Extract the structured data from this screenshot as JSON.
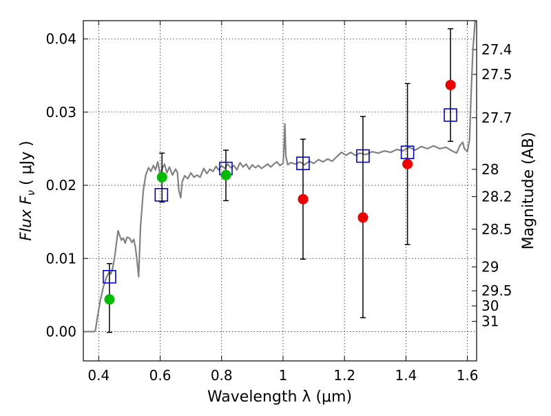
{
  "chart_data": {
    "type": "scatter",
    "xlabel": "Wavelength  λ (μm)",
    "ylabel": "Flux  F",
    "ylabel_sub": "ν",
    "ylabel_unit": " ( μJy )",
    "y2label": "Magnitude (AB)",
    "xlim": [
      0.35,
      1.63
    ],
    "ylim": [
      -0.004,
      0.0425
    ],
    "grid": true,
    "x_ticks": [
      {
        "v": 0.4,
        "label": "0.4"
      },
      {
        "v": 0.6,
        "label": "0.6"
      },
      {
        "v": 0.8,
        "label": "0.8"
      },
      {
        "v": 1.0,
        "label": "1"
      },
      {
        "v": 1.2,
        "label": "1.2"
      },
      {
        "v": 1.4,
        "label": "1.4"
      },
      {
        "v": 1.6,
        "label": "1.6"
      }
    ],
    "y_ticks": [
      {
        "v": 0.0,
        "label": "0.00"
      },
      {
        "v": 0.01,
        "label": "0.01"
      },
      {
        "v": 0.02,
        "label": "0.02"
      },
      {
        "v": 0.03,
        "label": "0.03"
      },
      {
        "v": 0.04,
        "label": "0.04"
      }
    ],
    "mag_ticks": [
      {
        "label": "27.4",
        "flux": 0.03855
      },
      {
        "label": "27.5",
        "flux": 0.03516
      },
      {
        "label": "27.7",
        "flux": 0.02924
      },
      {
        "label": "28",
        "flux": 0.02218
      },
      {
        "label": "28.2",
        "flux": 0.01845
      },
      {
        "label": "28.5",
        "flux": 0.014
      },
      {
        "label": "29",
        "flux": 0.00884
      },
      {
        "label": "29.5",
        "flux": 0.00558
      },
      {
        "label": "30",
        "flux": 0.00352
      },
      {
        "label": "31",
        "flux": 0.0014
      }
    ],
    "model_spectrum": {
      "color": "#808080",
      "points": [
        [
          0.35,
          0.0
        ],
        [
          0.386,
          0.0
        ],
        [
          0.39,
          0.0003
        ],
        [
          0.395,
          0.0018
        ],
        [
          0.405,
          0.0042
        ],
        [
          0.415,
          0.0061
        ],
        [
          0.425,
          0.0074
        ],
        [
          0.435,
          0.0082
        ],
        [
          0.44,
          0.0079
        ],
        [
          0.445,
          0.0086
        ],
        [
          0.452,
          0.0102
        ],
        [
          0.458,
          0.0122
        ],
        [
          0.463,
          0.0138
        ],
        [
          0.468,
          0.0132
        ],
        [
          0.474,
          0.0125
        ],
        [
          0.48,
          0.0128
        ],
        [
          0.486,
          0.0121
        ],
        [
          0.492,
          0.0129
        ],
        [
          0.5,
          0.0128
        ],
        [
          0.508,
          0.0122
        ],
        [
          0.514,
          0.0126
        ],
        [
          0.52,
          0.0114
        ],
        [
          0.525,
          0.0096
        ],
        [
          0.53,
          0.0075
        ],
        [
          0.536,
          0.0143
        ],
        [
          0.545,
          0.0192
        ],
        [
          0.553,
          0.0214
        ],
        [
          0.562,
          0.0224
        ],
        [
          0.57,
          0.0219
        ],
        [
          0.578,
          0.0227
        ],
        [
          0.585,
          0.0221
        ],
        [
          0.592,
          0.0232
        ],
        [
          0.6,
          0.0214
        ],
        [
          0.607,
          0.0223
        ],
        [
          0.614,
          0.0229
        ],
        [
          0.622,
          0.0217
        ],
        [
          0.63,
          0.0225
        ],
        [
          0.64,
          0.0214
        ],
        [
          0.65,
          0.0222
        ],
        [
          0.656,
          0.0218
        ],
        [
          0.661,
          0.0193
        ],
        [
          0.667,
          0.0183
        ],
        [
          0.672,
          0.0205
        ],
        [
          0.68,
          0.0213
        ],
        [
          0.69,
          0.0209
        ],
        [
          0.7,
          0.0217
        ],
        [
          0.71,
          0.0211
        ],
        [
          0.72,
          0.0214
        ],
        [
          0.73,
          0.0211
        ],
        [
          0.742,
          0.0223
        ],
        [
          0.752,
          0.0216
        ],
        [
          0.762,
          0.0222
        ],
        [
          0.772,
          0.0219
        ],
        [
          0.782,
          0.0226
        ],
        [
          0.79,
          0.0221
        ],
        [
          0.8,
          0.0227
        ],
        [
          0.81,
          0.0223
        ],
        [
          0.82,
          0.0229
        ],
        [
          0.83,
          0.0224
        ],
        [
          0.84,
          0.0227
        ],
        [
          0.85,
          0.0221
        ],
        [
          0.86,
          0.0231
        ],
        [
          0.87,
          0.0225
        ],
        [
          0.88,
          0.0229
        ],
        [
          0.89,
          0.0222
        ],
        [
          0.9,
          0.0228
        ],
        [
          0.91,
          0.0224
        ],
        [
          0.92,
          0.0227
        ],
        [
          0.93,
          0.0223
        ],
        [
          0.94,
          0.0226
        ],
        [
          0.95,
          0.0229
        ],
        [
          0.96,
          0.0225
        ],
        [
          0.97,
          0.0229
        ],
        [
          0.98,
          0.0232
        ],
        [
          0.99,
          0.0227
        ],
        [
          1.0,
          0.023
        ],
        [
          1.003,
          0.025
        ],
        [
          1.006,
          0.0284
        ],
        [
          1.009,
          0.024
        ],
        [
          1.015,
          0.0228
        ],
        [
          1.025,
          0.0231
        ],
        [
          1.04,
          0.0229
        ],
        [
          1.055,
          0.0232
        ],
        [
          1.07,
          0.0228
        ],
        [
          1.085,
          0.0233
        ],
        [
          1.1,
          0.023
        ],
        [
          1.115,
          0.0235
        ],
        [
          1.13,
          0.0232
        ],
        [
          1.145,
          0.0236
        ],
        [
          1.16,
          0.0233
        ],
        [
          1.175,
          0.0239
        ],
        [
          1.19,
          0.0245
        ],
        [
          1.205,
          0.0241
        ],
        [
          1.22,
          0.0245
        ],
        [
          1.235,
          0.0241
        ],
        [
          1.25,
          0.0244
        ],
        [
          1.27,
          0.0242
        ],
        [
          1.29,
          0.0246
        ],
        [
          1.31,
          0.0244
        ],
        [
          1.33,
          0.0247
        ],
        [
          1.35,
          0.0245
        ],
        [
          1.37,
          0.0249
        ],
        [
          1.39,
          0.0247
        ],
        [
          1.41,
          0.0252
        ],
        [
          1.43,
          0.0248
        ],
        [
          1.45,
          0.0253
        ],
        [
          1.47,
          0.025
        ],
        [
          1.49,
          0.0254
        ],
        [
          1.51,
          0.025
        ],
        [
          1.53,
          0.0252
        ],
        [
          1.55,
          0.0247
        ],
        [
          1.565,
          0.0244
        ],
        [
          1.575,
          0.0254
        ],
        [
          1.585,
          0.0259
        ],
        [
          1.59,
          0.025
        ],
        [
          1.6,
          0.0246
        ],
        [
          1.607,
          0.0262
        ],
        [
          1.612,
          0.0325
        ],
        [
          1.618,
          0.0385
        ],
        [
          1.625,
          0.0425
        ]
      ]
    },
    "observed_red": {
      "color": "#ee0000",
      "points": [
        {
          "x": 1.065,
          "y": 0.0181,
          "ylo": 0.0099,
          "yhi": 0.0263
        },
        {
          "x": 1.26,
          "y": 0.0156,
          "ylo": 0.0019,
          "yhi": 0.0294
        },
        {
          "x": 1.405,
          "y": 0.0229,
          "ylo": 0.0119,
          "yhi": 0.0339
        },
        {
          "x": 1.545,
          "y": 0.0337,
          "ylo": 0.026,
          "yhi": 0.0414
        }
      ]
    },
    "observed_green": {
      "color": "#00bb00",
      "points": [
        {
          "x": 0.435,
          "y": 0.0044,
          "ylo": -0.0001,
          "yhi": 0.0093
        },
        {
          "x": 0.606,
          "y": 0.0211,
          "ylo": 0.0177,
          "yhi": 0.0244
        },
        {
          "x": 0.814,
          "y": 0.0214,
          "ylo": 0.0179,
          "yhi": 0.0248
        }
      ]
    },
    "model_boxes": {
      "color": "#0000cc",
      "points": [
        {
          "x": 0.435,
          "y": 0.0075
        },
        {
          "x": 0.604,
          "y": 0.0187
        },
        {
          "x": 0.814,
          "y": 0.0223
        },
        {
          "x": 1.065,
          "y": 0.023
        },
        {
          "x": 1.26,
          "y": 0.024
        },
        {
          "x": 1.405,
          "y": 0.0245
        },
        {
          "x": 1.545,
          "y": 0.0296
        }
      ]
    }
  }
}
